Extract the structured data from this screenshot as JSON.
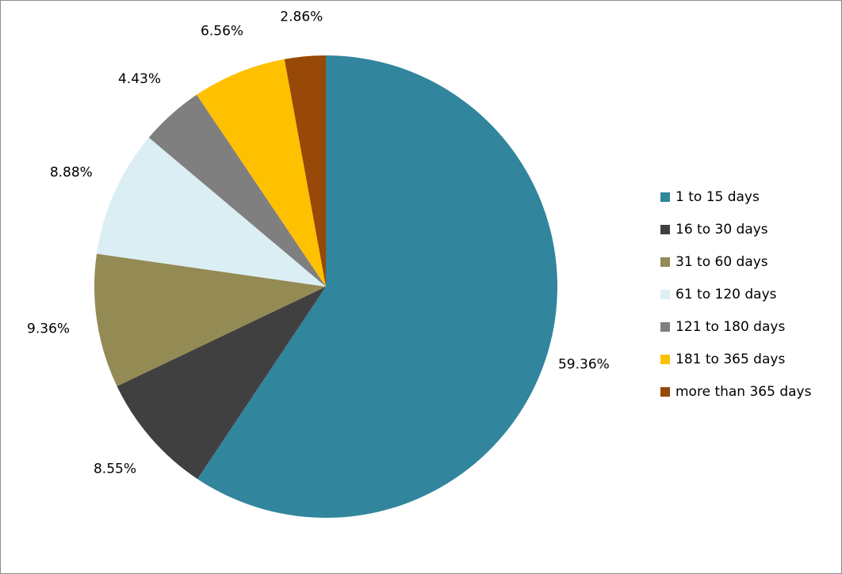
{
  "chart_data": {
    "type": "pie",
    "categories": [
      "1 to 15 days",
      "16 to 30 days",
      "31 to 60 days",
      "61 to 120 days",
      "121 to 180 days",
      "181 to 365 days",
      "more than 365 days"
    ],
    "values": [
      59.36,
      8.55,
      9.36,
      8.88,
      4.43,
      6.56,
      2.86
    ],
    "data_labels": [
      "59.36%",
      "8.55%",
      "9.36%",
      "8.88%",
      "4.43%",
      "6.56%",
      "2.86%"
    ],
    "colors": [
      "#31859c",
      "#404040",
      "#948a54",
      "#dbeef4",
      "#7f7f7f",
      "#ffc000",
      "#984807"
    ],
    "title": "",
    "legend_position": "right",
    "start_angle_deg": 0,
    "direction": "clockwise"
  }
}
